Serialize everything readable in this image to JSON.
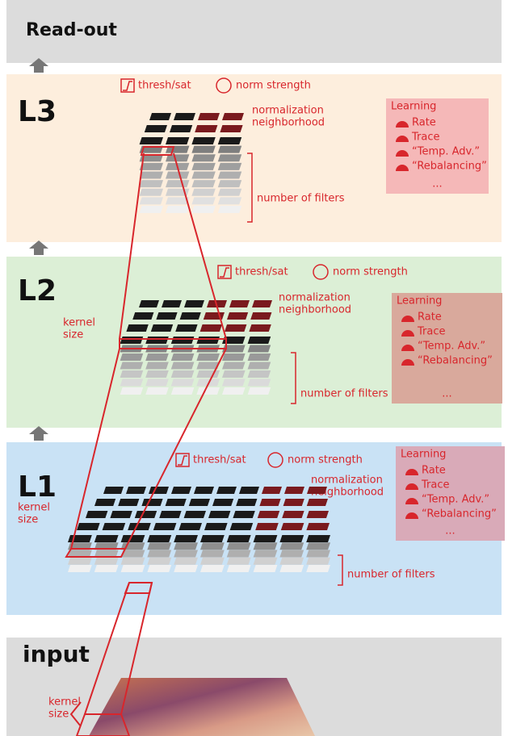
{
  "readout": {
    "label": "Read-out"
  },
  "layers": [
    {
      "label": "L3",
      "thresh": "thresh/sat",
      "norm": "norm strength",
      "neighborhood": [
        "normalization",
        "neighborhood"
      ],
      "filters": "number of filters",
      "learning": {
        "title": "Learning",
        "items": [
          "Rate",
          "Trace",
          "“Temp. Adv.”",
          "“Rebalancing”"
        ],
        "more": "..."
      }
    },
    {
      "label": "L2",
      "thresh": "thresh/sat",
      "norm": "norm strength",
      "neighborhood": [
        "normalization",
        "neighborhood"
      ],
      "filters": "number of filters",
      "kernel": [
        "kernel",
        "size"
      ],
      "learning": {
        "title": "Learning",
        "items": [
          "Rate",
          "Trace",
          "“Temp. Adv.”",
          "“Rebalancing”"
        ],
        "more": "..."
      }
    },
    {
      "label": "L1",
      "thresh": "thresh/sat",
      "norm": "norm strength",
      "neighborhood": [
        "normalization",
        "neighborhood"
      ],
      "filters": "number of filters",
      "kernel": [
        "kernel",
        "size"
      ],
      "learning": {
        "title": "Learning",
        "items": [
          "Rate",
          "Trace",
          "“Temp. Adv.”",
          "“Rebalancing”"
        ],
        "more": "..."
      }
    }
  ],
  "input": {
    "label": "input",
    "kernel": [
      "kernel",
      "size"
    ]
  }
}
